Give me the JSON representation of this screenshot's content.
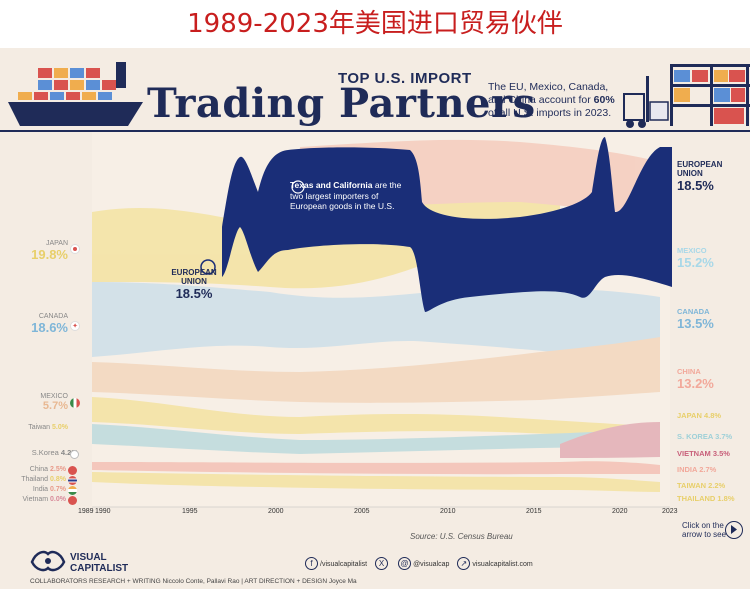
{
  "cn_title": "1989-2023年美国进口贸易伙伴",
  "header": {
    "eyebrow": "TOP U.S. IMPORT",
    "title": "Trading Partners",
    "subtitle_pre": "The EU, Mexico, Canada, and China account for ",
    "subtitle_bold": "60%",
    "subtitle_post": " of all U.S. imports in 2023."
  },
  "annotation": {
    "bold": "Texas and California",
    "text": " are the two largest importers of European goods in the U.S."
  },
  "labels_left": [
    {
      "name": "JAPAN",
      "value": "19.8%",
      "color": "#f2dc7c"
    },
    {
      "name": "CANADA",
      "value": "18.6%",
      "color": "#7fb6d8"
    },
    {
      "name": "MEXICO",
      "value": "5.7%",
      "color": "#f0c9a8"
    },
    {
      "name": "Taiwan",
      "value": "5.0%",
      "color": "#f0d88a"
    },
    {
      "name": "S.Korea",
      "value": "4.2%",
      "color": "#9ed0d8"
    },
    {
      "name": "China",
      "value": "2.5%",
      "color": "#e89a8a"
    },
    {
      "name": "Thailand",
      "value": "0.8%",
      "color": "#f2dc7c"
    },
    {
      "name": "India",
      "value": "0.7%",
      "color": "#e89a8a"
    },
    {
      "name": "Vietnam",
      "value": "0.0%",
      "color": "#d88a9a"
    }
  ],
  "eu_start": {
    "name": "EUROPEAN UNION",
    "value": "18.5%"
  },
  "eu_end": {
    "name": "EUROPEAN UNION",
    "value": "18.5%"
  },
  "labels_right": [
    {
      "name": "MEXICO",
      "value": "15.2%",
      "color": "#a8d8e8"
    },
    {
      "name": "CANADA",
      "value": "13.5%",
      "color": "#7fb6d8"
    },
    {
      "name": "CHINA",
      "value": "13.2%",
      "color": "#f2a89a"
    },
    {
      "name": "JAPAN",
      "value": "4.8%",
      "color": "#f2dc7c"
    },
    {
      "name": "S. KOREA",
      "value": "3.7%",
      "color": "#9ed0d8"
    },
    {
      "name": "VIETNAM",
      "value": "3.5%",
      "color": "#c8607a"
    },
    {
      "name": "INDIA",
      "value": "2.7%",
      "color": "#f2a89a"
    },
    {
      "name": "TAIWAN",
      "value": "2.2%",
      "color": "#f2dc7c"
    },
    {
      "name": "THAILAND",
      "value": "1.8%",
      "color": "#f2dc7c"
    }
  ],
  "years": [
    "1989",
    "1990",
    "1995",
    "2000",
    "2005",
    "2010",
    "2015",
    "2020",
    "2023"
  ],
  "source": "Source: U.S. Census Bureau",
  "logo": {
    "line1": "VISUAL",
    "line2": "CAPITALIST"
  },
  "social": [
    {
      "icon": "f",
      "text": "/visualcapitalist"
    },
    {
      "icon": "X",
      "text": "@visualcap"
    },
    {
      "icon": "@",
      "text": "@visualcap"
    },
    {
      "icon": "↗",
      "text": "visualcapitalist.com"
    }
  ],
  "collab": "COLLABORATORS   RESEARCH + WRITING Niccolo Conte, Pallavi Rao  |  ART DIRECTION + DESIGN Joyce Ma",
  "cta": "Click on the arrow to see",
  "chart_data": {
    "type": "area",
    "title": "Trading Partners",
    "x": [
      "1989",
      "2023"
    ],
    "series": [
      {
        "name": "JAPAN",
        "values": [
          19.8,
          4.8
        ]
      },
      {
        "name": "CANADA",
        "values": [
          18.6,
          13.5
        ]
      },
      {
        "name": "EUROPEAN UNION",
        "values": [
          18.5,
          18.5
        ]
      },
      {
        "name": "MEXICO",
        "values": [
          5.7,
          15.2
        ]
      },
      {
        "name": "TAIWAN",
        "values": [
          5.0,
          2.2
        ]
      },
      {
        "name": "S. KOREA",
        "values": [
          4.2,
          3.7
        ]
      },
      {
        "name": "CHINA",
        "values": [
          2.5,
          13.2
        ]
      },
      {
        "name": "THAILAND",
        "values": [
          0.8,
          1.8
        ]
      },
      {
        "name": "INDIA",
        "values": [
          0.7,
          2.7
        ]
      },
      {
        "name": "VIETNAM",
        "values": [
          0.0,
          3.5
        ]
      }
    ],
    "colors": {
      "eu": "#1a2e78",
      "bg": "#f4ece3"
    }
  }
}
